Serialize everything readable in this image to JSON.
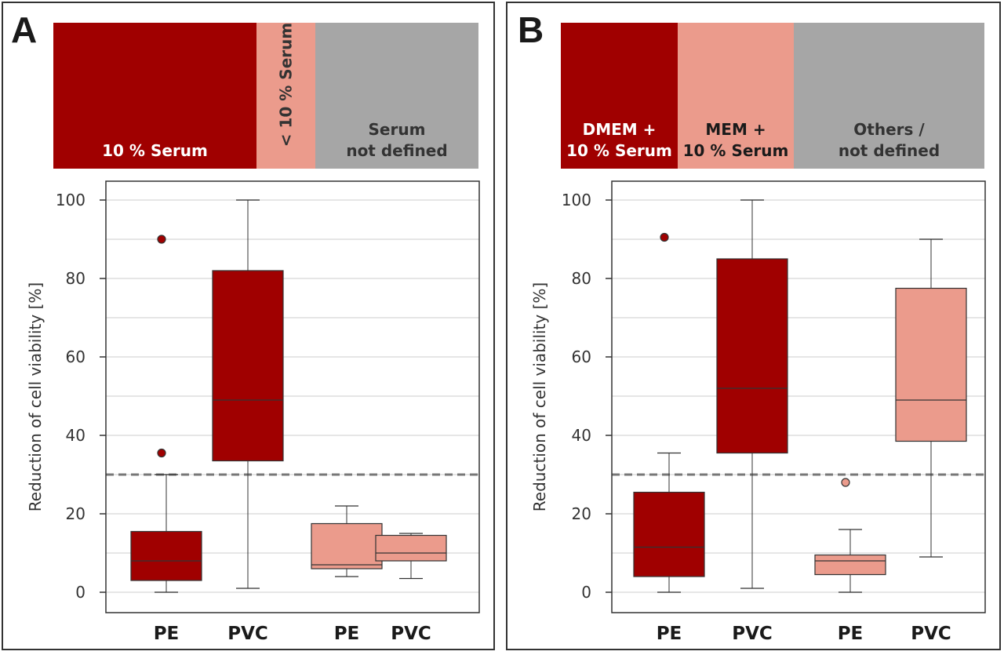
{
  "chart_data": [
    {
      "type": "box",
      "panel_label": "A",
      "bands": [
        {
          "text": [
            "10 % Serum"
          ],
          "color": "#a00000",
          "text_color": "#ffffff"
        },
        {
          "text": [
            "< 10 % Serum"
          ],
          "color": "#eb9b8c",
          "text_color": "#333333",
          "vertical": true
        },
        {
          "text": [
            "Serum",
            "not defined"
          ],
          "color": "#a6a6a6",
          "text_color": "#333333"
        }
      ],
      "ylabel": "Reduction of cell viability  [%]",
      "ylim": [
        0,
        100
      ],
      "yticks": [
        0,
        20,
        40,
        60,
        80,
        100
      ],
      "threshold": 30,
      "categories": [
        "PE",
        "PVC",
        "PE",
        "PVC"
      ],
      "boxes": [
        {
          "label": "PE",
          "color": "#a00000",
          "whisker_low": 0,
          "q1": 3,
          "median": 8,
          "q3": 15.5,
          "whisker_high": 30,
          "outliers": [
            35.5,
            90
          ]
        },
        {
          "label": "PVC",
          "color": "#a00000",
          "whisker_low": 1,
          "q1": 33.5,
          "median": 49,
          "q3": 82,
          "whisker_high": 100,
          "outliers": []
        },
        {
          "label": "PE",
          "color": "#eb9b8c",
          "whisker_low": 4,
          "q1": 6,
          "median": 7,
          "q3": 17.5,
          "whisker_high": 22,
          "outliers": []
        },
        {
          "label": "PVC",
          "color": "#eb9b8c",
          "whisker_low": 3.5,
          "q1": 8,
          "median": 10,
          "q3": 14.5,
          "whisker_high": 15,
          "outliers": []
        }
      ]
    },
    {
      "type": "box",
      "panel_label": "B",
      "bands": [
        {
          "text": [
            "DMEM +",
            "10 % Serum"
          ],
          "color": "#a00000",
          "text_color": "#ffffff"
        },
        {
          "text": [
            "MEM +",
            "10 % Serum"
          ],
          "color": "#eb9b8c",
          "text_color": "#1a1a1a"
        },
        {
          "text": [
            "Others /",
            "not defined"
          ],
          "color": "#a6a6a6",
          "text_color": "#333333"
        }
      ],
      "ylabel": "Reduction of cell viability  [%]",
      "ylim": [
        0,
        100
      ],
      "yticks": [
        0,
        20,
        40,
        60,
        80,
        100
      ],
      "threshold": 30,
      "categories": [
        "PE",
        "PVC",
        "PE",
        "PVC"
      ],
      "boxes": [
        {
          "label": "PE",
          "color": "#a00000",
          "whisker_low": 0,
          "q1": 4,
          "median": 11.5,
          "q3": 25.5,
          "whisker_high": 35.5,
          "outliers": [
            90.5
          ]
        },
        {
          "label": "PVC",
          "color": "#a00000",
          "whisker_low": 1,
          "q1": 35.5,
          "median": 52,
          "q3": 85,
          "whisker_high": 100,
          "outliers": []
        },
        {
          "label": "PE",
          "color": "#eb9b8c",
          "whisker_low": 0,
          "q1": 4.5,
          "median": 8,
          "q3": 9.5,
          "whisker_high": 16,
          "outliers": [
            28
          ]
        },
        {
          "label": "PVC",
          "color": "#eb9b8c",
          "whisker_low": 9,
          "q1": 38.5,
          "median": 49,
          "q3": 77.5,
          "whisker_high": 90,
          "outliers": []
        }
      ]
    }
  ]
}
